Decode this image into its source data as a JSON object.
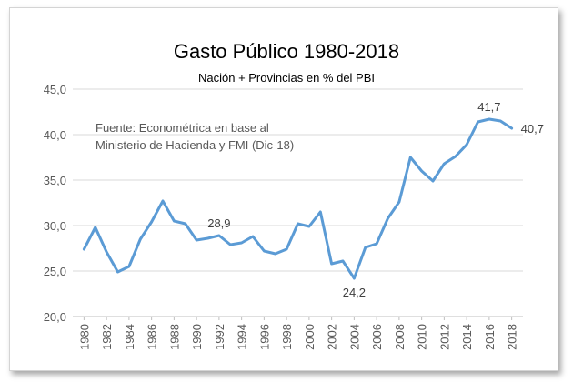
{
  "chart_data": {
    "type": "line",
    "title": "Gasto Público 1980-2018",
    "subtitle": "Nación + Provincias en % del PBI",
    "annotation_lines": [
      "Fuente: Econométrica en base al",
      "Ministerio de Hacienda y FMI (Dic-18)"
    ],
    "xlabel": "",
    "ylabel": "",
    "ylim": [
      20,
      45
    ],
    "y_ticks": [
      "20,0",
      "25,0",
      "30,0",
      "35,0",
      "40,0",
      "45,0"
    ],
    "x_ticks": [
      "1980",
      "1982",
      "1984",
      "1986",
      "1988",
      "1990",
      "1992",
      "1994",
      "1996",
      "1998",
      "2000",
      "2002",
      "2004",
      "2006",
      "2008",
      "2010",
      "2012",
      "2014",
      "2016",
      "2018"
    ],
    "grid": true,
    "legend": "none",
    "series": [
      {
        "color": "#5b9bd5",
        "x": [
          1980,
          1981,
          1982,
          1983,
          1984,
          1985,
          1986,
          1987,
          1988,
          1989,
          1990,
          1991,
          1992,
          1993,
          1994,
          1995,
          1996,
          1997,
          1998,
          1999,
          2000,
          2001,
          2002,
          2003,
          2004,
          2005,
          2006,
          2007,
          2008,
          2009,
          2010,
          2011,
          2012,
          2013,
          2014,
          2015,
          2016,
          2017,
          2018
        ],
        "values": [
          27.4,
          29.8,
          27.1,
          24.9,
          25.5,
          28.5,
          30.4,
          32.7,
          30.5,
          30.2,
          28.4,
          28.6,
          28.9,
          27.9,
          28.1,
          28.8,
          27.2,
          26.9,
          27.4,
          30.2,
          29.9,
          31.5,
          25.8,
          26.1,
          24.2,
          27.6,
          28.0,
          30.8,
          32.6,
          37.5,
          36.0,
          34.9,
          36.8,
          37.6,
          38.9,
          41.4,
          41.7,
          41.5,
          40.7
        ]
      }
    ],
    "data_labels": [
      {
        "x": 1992,
        "text": "28,9"
      },
      {
        "x": 2004,
        "text": "24,2"
      },
      {
        "x": 2016,
        "text": "41,7"
      },
      {
        "x": 2018,
        "text": "40,7"
      }
    ]
  }
}
